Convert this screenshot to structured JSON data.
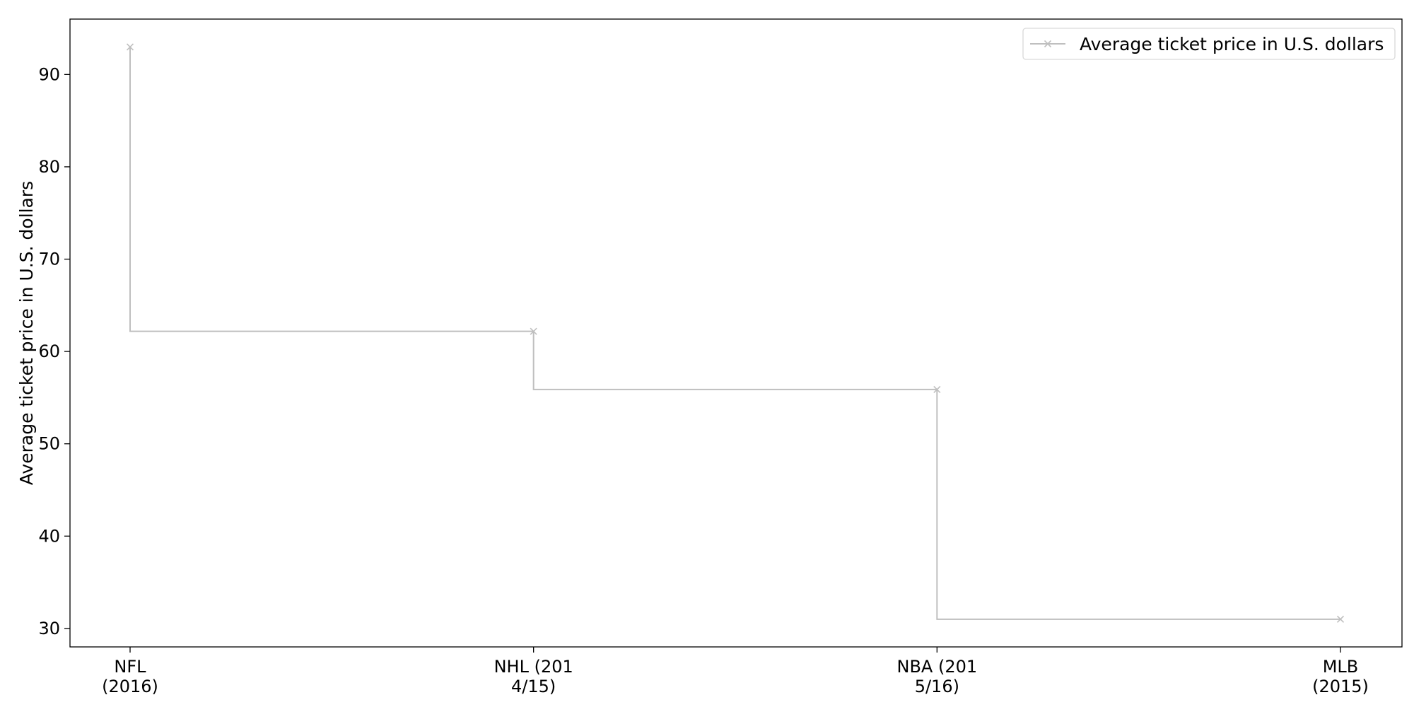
{
  "chart_data": {
    "type": "line",
    "drawstyle": "steps-pre",
    "categories": [
      [
        "NFL",
        "(2016)"
      ],
      [
        "NHL (201",
        "4/15)"
      ],
      [
        "NBA (201",
        "5/16)"
      ],
      [
        "MLB",
        "(2015)"
      ]
    ],
    "series": [
      {
        "name": "Average ticket price in U.S. dollars",
        "values": [
          92.98,
          62.18,
          55.88,
          31.0
        ],
        "color": "#bfbfbf",
        "marker": "x"
      }
    ],
    "xlabel": "",
    "ylabel": "Average ticket price in U.S. dollars",
    "ylim": [
      28,
      96
    ],
    "yticks": [
      30,
      40,
      50,
      60,
      70,
      80,
      90
    ],
    "grid": false,
    "legend_position": "top-right"
  }
}
